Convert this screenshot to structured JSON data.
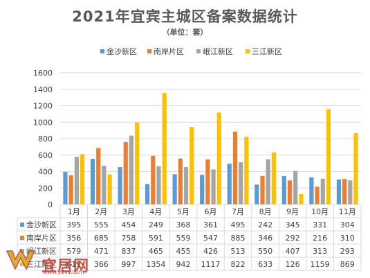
{
  "chart_data": {
    "type": "bar",
    "title": "2021年宜宾主城区备案数据统计",
    "subtitle": "（单位：套）",
    "categories": [
      "1月",
      "2月",
      "3月",
      "4月",
      "5月",
      "6月",
      "7月",
      "8月",
      "9月",
      "10月",
      "11月"
    ],
    "ylim": [
      0,
      1600
    ],
    "yticks": [
      0,
      200,
      400,
      600,
      800,
      1000,
      1200,
      1400,
      1600
    ],
    "grid": true,
    "legend_position": "top",
    "data_table": true,
    "series": [
      {
        "name": "金沙新区",
        "color": "#5b9bd5",
        "values": [
          395,
          555,
          454,
          249,
          368,
          361,
          495,
          242,
          345,
          331,
          304
        ]
      },
      {
        "name": "南岸片区",
        "color": "#ed7d31",
        "values": [
          356,
          685,
          758,
          591,
          559,
          547,
          885,
          346,
          292,
          216,
          310
        ]
      },
      {
        "name": "岷江新区",
        "color": "#a5a5a5",
        "values": [
          579,
          471,
          837,
          465,
          455,
          426,
          513,
          550,
          407,
          313,
          293
        ]
      },
      {
        "name": "三江新区",
        "color": "#ffc000",
        "values": [
          611,
          366,
          997,
          1354,
          942,
          1117,
          822,
          633,
          126,
          1159,
          869
        ]
      }
    ]
  },
  "watermark": {
    "text": "宜居网",
    "url": "www.ybvv.com"
  }
}
